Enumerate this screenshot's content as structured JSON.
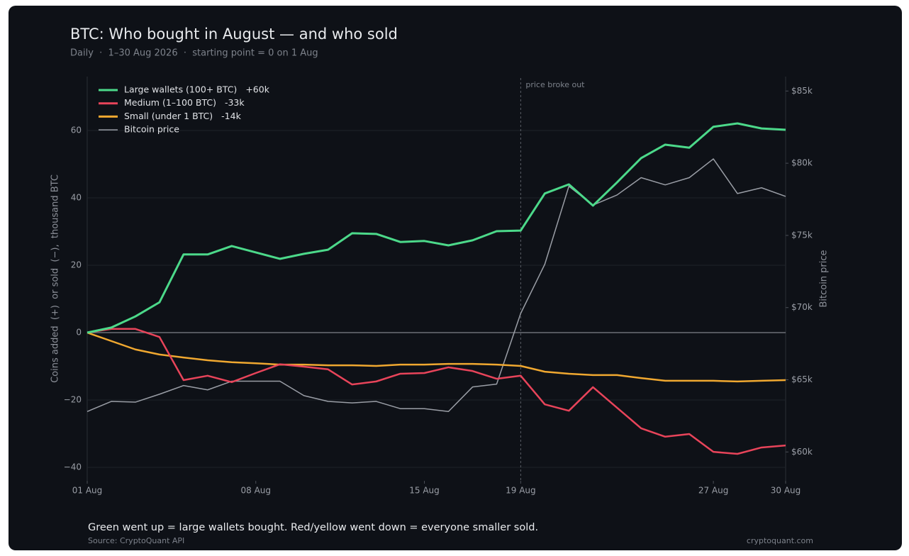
{
  "chart_data": {
    "type": "line",
    "title": "BTC: Who bought in August — and who sold",
    "subtitle": "Daily  ·  1–30 Aug 2026  ·  starting point = 0 on 1 Aug",
    "y_label": "Coins added  (+)  or sold  (−),  thousand BTC",
    "y2_label": "Bitcoin price",
    "annotation": "price broke out",
    "annotation_x": 19,
    "footnote": "Green went up = large wallets bought. Red/yellow went down = everyone smaller sold.",
    "source": "Source: CryptoQuant API",
    "credit": "cryptoquant.com",
    "grid": true,
    "legend": "top-left",
    "x": [
      1,
      2,
      3,
      4,
      5,
      6,
      7,
      8,
      9,
      10,
      11,
      12,
      13,
      14,
      15,
      16,
      17,
      18,
      19,
      20,
      21,
      22,
      23,
      24,
      25,
      26,
      27,
      28,
      29,
      30
    ],
    "xlim": [
      1,
      30
    ],
    "xticks": [
      {
        "value": 1,
        "label": "01 Aug"
      },
      {
        "value": 8,
        "label": "08 Aug"
      },
      {
        "value": 15,
        "label": "15 Aug"
      },
      {
        "value": 19,
        "label": "19 Aug"
      },
      {
        "value": 27,
        "label": "27 Aug"
      },
      {
        "value": 30,
        "label": "30 Aug"
      }
    ],
    "ylim": [
      -44,
      76
    ],
    "yticks": [
      {
        "value": -40,
        "label": "−40"
      },
      {
        "value": -20,
        "label": "−20"
      },
      0,
      20,
      40,
      60
    ],
    "y2lim": [
      58000,
      86000
    ],
    "y2ticks": [
      {
        "value": 60000,
        "label": "$60k"
      },
      {
        "value": 65000,
        "label": "$65k"
      },
      {
        "value": 70000,
        "label": "$70k"
      },
      {
        "value": 75000,
        "label": "$75k"
      },
      {
        "value": 80000,
        "label": "$80k"
      },
      {
        "value": 85000,
        "label": "$85k"
      }
    ],
    "series": [
      {
        "name": "Large wallets (100+ BTC)",
        "change": "+60k",
        "color": "#4cd98a",
        "width": 3,
        "values": [
          0,
          1.5,
          4.8,
          9,
          23.2,
          23.2,
          25.7,
          23.8,
          21.9,
          23.4,
          24.6,
          29.5,
          29.3,
          26.9,
          27.2,
          25.9,
          27.4,
          30.1,
          30.3,
          41.3,
          44,
          37.7,
          44.6,
          51.8,
          55.8,
          54.9,
          61.1,
          62.1,
          60.6,
          60.2
        ]
      },
      {
        "name": "Medium (1–100 BTC)",
        "change": "-33k",
        "color": "#e8445a",
        "width": 2.5,
        "values": [
          0,
          1.1,
          1.1,
          -1.3,
          -14.1,
          -12.8,
          -14.7,
          -12,
          -9.4,
          -10.1,
          -10.9,
          -15.4,
          -14.5,
          -12.2,
          -12,
          -10.3,
          -11.4,
          -13.7,
          -12.8,
          -21.3,
          -23.2,
          -16.2,
          -22.3,
          -28.4,
          -30.9,
          -30.1,
          -35.4,
          -36,
          -34.1,
          -33.5
        ]
      },
      {
        "name": "Small (under 1 BTC)",
        "change": "-14k",
        "color": "#f0a830",
        "width": 2.5,
        "values": [
          0,
          -2.5,
          -5,
          -6.5,
          -7.4,
          -8.2,
          -8.8,
          -9.1,
          -9.5,
          -9.5,
          -9.7,
          -9.7,
          -9.9,
          -9.5,
          -9.5,
          -9.3,
          -9.3,
          -9.5,
          -9.9,
          -11.6,
          -12.2,
          -12.6,
          -12.6,
          -13.5,
          -14.3,
          -14.3,
          -14.3,
          -14.5,
          -14.3,
          -14.1
        ]
      },
      {
        "name": "Bitcoin price",
        "color": "#9a9ea6",
        "width": 1.5,
        "axis": "y2",
        "values": [
          62800,
          63500,
          63450,
          64000,
          64600,
          64300,
          64900,
          64900,
          64900,
          63900,
          63500,
          63400,
          63500,
          63000,
          63000,
          62800,
          64500,
          64700,
          69600,
          73000,
          78400,
          77100,
          77800,
          79000,
          78500,
          79000,
          80300,
          77900,
          78300,
          77700
        ]
      }
    ]
  }
}
